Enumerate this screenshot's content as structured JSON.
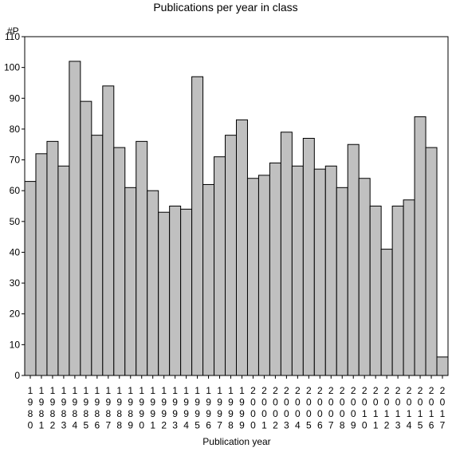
{
  "chart_data": {
    "type": "bar",
    "title": "Publications per year in class",
    "ylabel": "#P",
    "xlabel": "Publication year",
    "ylim": [
      0,
      110
    ],
    "yticks": [
      0,
      10,
      20,
      30,
      40,
      50,
      60,
      70,
      80,
      90,
      100,
      110
    ],
    "categories": [
      "1980",
      "1981",
      "1982",
      "1983",
      "1984",
      "1985",
      "1986",
      "1987",
      "1988",
      "1989",
      "1990",
      "1991",
      "1992",
      "1993",
      "1994",
      "1995",
      "1996",
      "1997",
      "1998",
      "1999",
      "2000",
      "2001",
      "2002",
      "2003",
      "2004",
      "2005",
      "2006",
      "2007",
      "2008",
      "2009",
      "2010",
      "2011",
      "2012",
      "2013",
      "2014",
      "2015",
      "2016",
      "2017"
    ],
    "values": [
      63,
      72,
      76,
      68,
      102,
      89,
      78,
      94,
      74,
      61,
      76,
      60,
      53,
      55,
      54,
      97,
      62,
      71,
      78,
      83,
      64,
      65,
      69,
      79,
      68,
      77,
      67,
      68,
      61,
      75,
      64,
      55,
      41,
      55,
      57,
      84,
      74,
      6
    ],
    "grid": false,
    "colors": {
      "bar_fill": "#c0c0c0",
      "bar_stroke": "#000000"
    }
  }
}
